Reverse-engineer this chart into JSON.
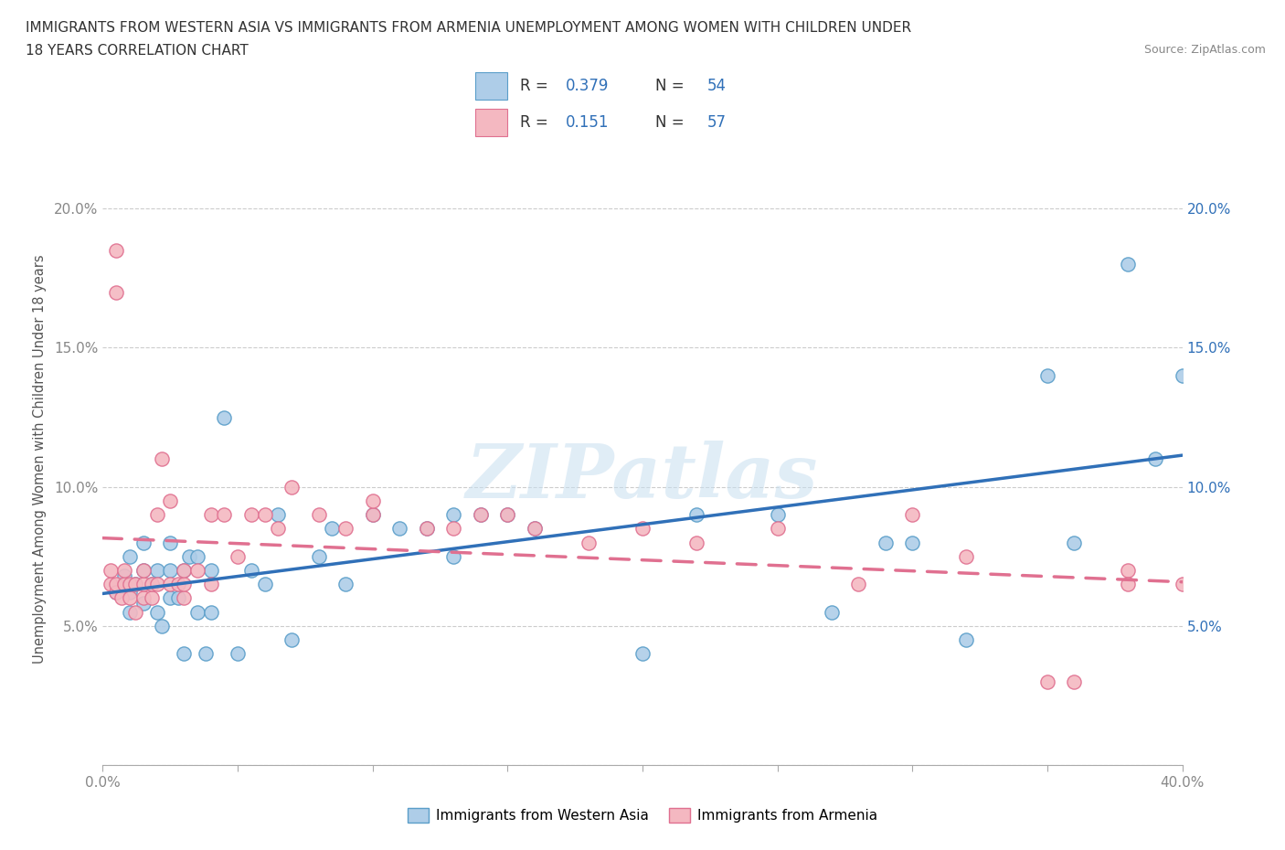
{
  "title_line1": "IMMIGRANTS FROM WESTERN ASIA VS IMMIGRANTS FROM ARMENIA UNEMPLOYMENT AMONG WOMEN WITH CHILDREN UNDER",
  "title_line2": "18 YEARS CORRELATION CHART",
  "source": "Source: ZipAtlas.com",
  "ylabel": "Unemployment Among Women with Children Under 18 years",
  "xlim": [
    0.0,
    0.4
  ],
  "ylim": [
    0.0,
    0.22
  ],
  "watermark": "ZIPatlas",
  "legend_R1": "0.379",
  "legend_N1": "54",
  "legend_R2": "0.151",
  "legend_N2": "57",
  "color_western": "#aecde8",
  "color_armenia": "#f4b8c1",
  "color_western_edge": "#5a9ec9",
  "color_armenia_edge": "#e07090",
  "line_color_western": "#3070b8",
  "line_color_armenia": "#e07090",
  "grid_color": "#cccccc",
  "right_tick_color": "#3070b8",
  "western_asia_x": [
    0.005,
    0.008,
    0.01,
    0.01,
    0.01,
    0.012,
    0.015,
    0.015,
    0.015,
    0.018,
    0.02,
    0.02,
    0.022,
    0.025,
    0.025,
    0.025,
    0.028,
    0.03,
    0.03,
    0.032,
    0.035,
    0.035,
    0.038,
    0.04,
    0.04,
    0.045,
    0.05,
    0.055,
    0.06,
    0.065,
    0.07,
    0.08,
    0.085,
    0.09,
    0.1,
    0.11,
    0.12,
    0.13,
    0.13,
    0.14,
    0.15,
    0.16,
    0.2,
    0.22,
    0.25,
    0.27,
    0.29,
    0.3,
    0.32,
    0.35,
    0.36,
    0.38,
    0.39,
    0.4
  ],
  "western_asia_y": [
    0.062,
    0.068,
    0.055,
    0.062,
    0.075,
    0.065,
    0.058,
    0.07,
    0.08,
    0.065,
    0.055,
    0.07,
    0.05,
    0.06,
    0.07,
    0.08,
    0.06,
    0.04,
    0.07,
    0.075,
    0.055,
    0.075,
    0.04,
    0.055,
    0.07,
    0.125,
    0.04,
    0.07,
    0.065,
    0.09,
    0.045,
    0.075,
    0.085,
    0.065,
    0.09,
    0.085,
    0.085,
    0.09,
    0.075,
    0.09,
    0.09,
    0.085,
    0.04,
    0.09,
    0.09,
    0.055,
    0.08,
    0.08,
    0.045,
    0.14,
    0.08,
    0.18,
    0.11,
    0.14
  ],
  "armenia_x": [
    0.003,
    0.003,
    0.005,
    0.005,
    0.005,
    0.005,
    0.007,
    0.008,
    0.008,
    0.01,
    0.01,
    0.012,
    0.012,
    0.015,
    0.015,
    0.015,
    0.018,
    0.018,
    0.02,
    0.02,
    0.022,
    0.025,
    0.025,
    0.028,
    0.03,
    0.03,
    0.03,
    0.035,
    0.04,
    0.04,
    0.045,
    0.05,
    0.055,
    0.06,
    0.065,
    0.07,
    0.08,
    0.09,
    0.1,
    0.1,
    0.12,
    0.13,
    0.14,
    0.15,
    0.16,
    0.18,
    0.2,
    0.22,
    0.25,
    0.28,
    0.3,
    0.32,
    0.35,
    0.36,
    0.38,
    0.38,
    0.4
  ],
  "armenia_y": [
    0.065,
    0.07,
    0.062,
    0.065,
    0.17,
    0.185,
    0.06,
    0.065,
    0.07,
    0.06,
    0.065,
    0.055,
    0.065,
    0.06,
    0.065,
    0.07,
    0.06,
    0.065,
    0.065,
    0.09,
    0.11,
    0.065,
    0.095,
    0.065,
    0.06,
    0.065,
    0.07,
    0.07,
    0.065,
    0.09,
    0.09,
    0.075,
    0.09,
    0.09,
    0.085,
    0.1,
    0.09,
    0.085,
    0.09,
    0.095,
    0.085,
    0.085,
    0.09,
    0.09,
    0.085,
    0.08,
    0.085,
    0.08,
    0.085,
    0.065,
    0.09,
    0.075,
    0.03,
    0.03,
    0.07,
    0.065,
    0.065
  ]
}
